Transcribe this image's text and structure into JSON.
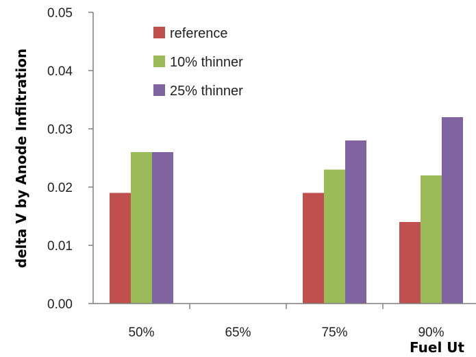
{
  "chart_data": {
    "type": "bar",
    "categories": [
      "50%",
      "65%",
      "75%",
      "90%"
    ],
    "series": [
      {
        "name": "reference",
        "values": [
          0.019,
          null,
          0.019,
          0.014
        ],
        "color": "#c0504d"
      },
      {
        "name": "10% thinner",
        "values": [
          0.026,
          null,
          0.023,
          0.022
        ],
        "color": "#9bbb59"
      },
      {
        "name": "25% thinner",
        "values": [
          0.026,
          null,
          0.028,
          0.032
        ],
        "color": "#8064a2"
      }
    ],
    "ylabel": "delta V by Anode Infiltration",
    "xlabel": "Fuel Ut",
    "ylim": [
      0,
      0.05
    ],
    "yticks": [
      "0.00",
      "0.01",
      "0.02",
      "0.03",
      "0.04",
      "0.05"
    ],
    "grid": false,
    "legend_position": "top-left"
  }
}
